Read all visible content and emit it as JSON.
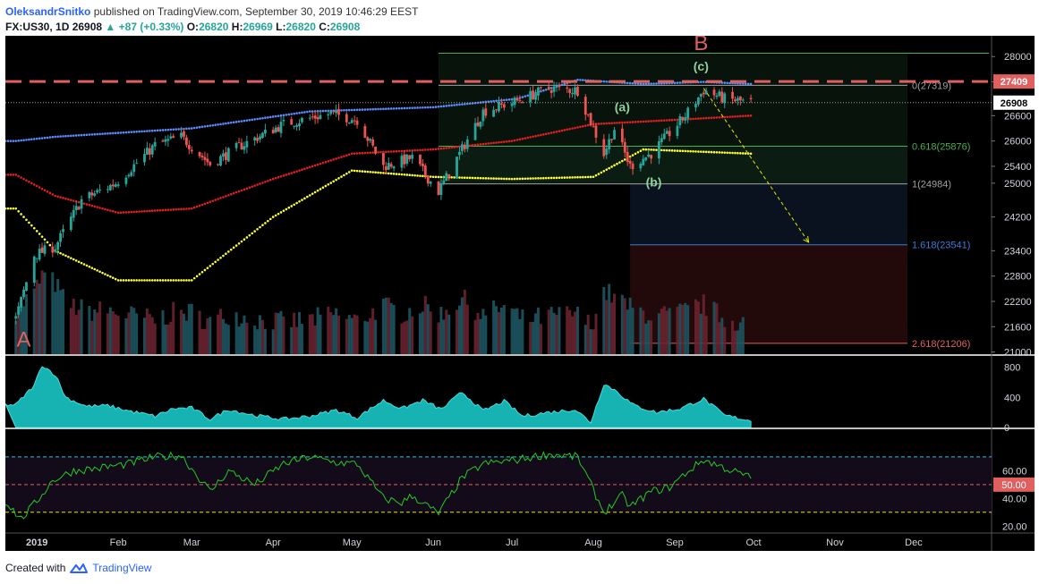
{
  "header": {
    "author": "OleksandrSnitko",
    "published": "published on TradingView.com, September 30, 2019 10:46:29 EEST",
    "symbol": "FX:US30, 1D",
    "last": "26908",
    "change": "+87 (+0.33%)",
    "open_label": "O:",
    "open": "26820",
    "high_label": "H:",
    "high": "26969",
    "low_label": "L:",
    "low": "26820",
    "close_label": "C:",
    "close": "26908"
  },
  "footer": {
    "created_with": "Created with",
    "brand": "TradingView"
  },
  "colors": {
    "background": "#000000",
    "bull": "#26a69a",
    "bear": "#ef5350",
    "upper_band": "#5b8cff",
    "mid_band": "#e02020",
    "lower_band": "#ffff33",
    "volume_area": "#17b3b3",
    "rsi": "#22cc22",
    "resistance": "#e06060"
  },
  "chart_data": [
    {
      "type": "candlestick",
      "x_ticks": [
        "2019",
        "Feb",
        "Mar",
        "Apr",
        "May",
        "Jun",
        "Jul",
        "Aug",
        "Sep",
        "Oct",
        "Nov",
        "Dec"
      ],
      "y_ticks": [
        28000,
        27400,
        26600,
        26000,
        25400,
        25000,
        24200,
        23400,
        22800,
        22200,
        21600,
        21000
      ],
      "ylim": [
        20950,
        28450
      ],
      "close_path": [
        {
          "x": "2018-12-24",
          "y": 21800
        },
        {
          "x": "2018-12-31",
          "y": 23300
        },
        {
          "x": "2019-01-08",
          "y": 23500
        },
        {
          "x": "2019-01-18",
          "y": 24600
        },
        {
          "x": "2019-01-31",
          "y": 25000
        },
        {
          "x": "2019-02-15",
          "y": 25900
        },
        {
          "x": "2019-02-25",
          "y": 26100
        },
        {
          "x": "2019-03-08",
          "y": 25450
        },
        {
          "x": "2019-03-20",
          "y": 25900
        },
        {
          "x": "2019-04-05",
          "y": 26400
        },
        {
          "x": "2019-04-23",
          "y": 26650
        },
        {
          "x": "2019-05-03",
          "y": 26500
        },
        {
          "x": "2019-05-13",
          "y": 25400
        },
        {
          "x": "2019-05-24",
          "y": 25600
        },
        {
          "x": "2019-06-03",
          "y": 24800
        },
        {
          "x": "2019-06-20",
          "y": 26700
        },
        {
          "x": "2019-07-03",
          "y": 26950
        },
        {
          "x": "2019-07-15",
          "y": 27250
        },
        {
          "x": "2019-07-26",
          "y": 27200
        },
        {
          "x": "2019-08-05",
          "y": 25700
        },
        {
          "x": "2019-08-09",
          "y": 26300
        },
        {
          "x": "2019-08-15",
          "y": 25400
        },
        {
          "x": "2019-08-23",
          "y": 25700
        },
        {
          "x": "2019-09-05",
          "y": 26600
        },
        {
          "x": "2019-09-12",
          "y": 27200
        },
        {
          "x": "2019-09-20",
          "y": 27000
        },
        {
          "x": "2019-09-30",
          "y": 26908
        }
      ],
      "bands": {
        "upper": [
          {
            "x": "2018-12-24",
            "y": 26000
          },
          {
            "x": "2019-01-08",
            "y": 26100
          },
          {
            "x": "2019-03-01",
            "y": 26300
          },
          {
            "x": "2019-04-15",
            "y": 26700
          },
          {
            "x": "2019-06-01",
            "y": 26800
          },
          {
            "x": "2019-07-03",
            "y": 27000
          },
          {
            "x": "2019-07-26",
            "y": 27450
          },
          {
            "x": "2019-08-20",
            "y": 27350
          },
          {
            "x": "2019-09-12",
            "y": 27400
          },
          {
            "x": "2019-09-30",
            "y": 27350
          }
        ],
        "middle": [
          {
            "x": "2018-12-24",
            "y": 25200
          },
          {
            "x": "2019-01-08",
            "y": 24700
          },
          {
            "x": "2019-02-01",
            "y": 24300
          },
          {
            "x": "2019-03-01",
            "y": 24400
          },
          {
            "x": "2019-04-01",
            "y": 25100
          },
          {
            "x": "2019-05-01",
            "y": 25700
          },
          {
            "x": "2019-06-01",
            "y": 25800
          },
          {
            "x": "2019-07-01",
            "y": 26000
          },
          {
            "x": "2019-08-01",
            "y": 26400
          },
          {
            "x": "2019-09-01",
            "y": 26500
          },
          {
            "x": "2019-09-30",
            "y": 26600
          }
        ],
        "lower": [
          {
            "x": "2018-12-24",
            "y": 24400
          },
          {
            "x": "2019-01-08",
            "y": 23400
          },
          {
            "x": "2019-02-01",
            "y": 22700
          },
          {
            "x": "2019-03-01",
            "y": 22700
          },
          {
            "x": "2019-04-01",
            "y": 24200
          },
          {
            "x": "2019-05-01",
            "y": 25300
          },
          {
            "x": "2019-06-01",
            "y": 25150
          },
          {
            "x": "2019-07-01",
            "y": 25100
          },
          {
            "x": "2019-08-01",
            "y": 25150
          },
          {
            "x": "2019-08-20",
            "y": 25800
          },
          {
            "x": "2019-09-30",
            "y": 25700
          }
        ]
      },
      "last_price": 26908,
      "resistance_level": 27409,
      "fibonacci": [
        {
          "ratio": "0",
          "value": 27319,
          "label": "0(27319)",
          "color": "#a0a0a0"
        },
        {
          "ratio": "0.618",
          "value": 25876,
          "label": "0.618(25876)",
          "color": "#4caf50"
        },
        {
          "ratio": "1",
          "value": 24984,
          "label": "1(24984)",
          "color": "#a0a0a0"
        },
        {
          "ratio": "1.618",
          "value": 23541,
          "label": "1.618(23541)",
          "color": "#3d7bd8"
        },
        {
          "ratio": "2.618",
          "value": 21206,
          "label": "2.618(21206)",
          "color": "#e06060"
        }
      ],
      "annotations": [
        {
          "text": "A",
          "color": "#e06060",
          "x": "2018-12-27",
          "y": 21130
        },
        {
          "text": "B",
          "color": "#e06060",
          "x": "2019-09-11",
          "y": 28150
        },
        {
          "text": "(a)",
          "color": "#8fd19e",
          "x": "2019-08-12",
          "y": 26700
        },
        {
          "text": "(b)",
          "color": "#8fd19e",
          "x": "2019-08-24",
          "y": 24920
        },
        {
          "text": "(c)",
          "color": "#8fd19e",
          "x": "2019-09-11",
          "y": 27670
        }
      ],
      "projection": {
        "from": {
          "x": "2019-09-12",
          "y": 27250
        },
        "to": {
          "x": "2019-10-22",
          "y": 23600
        }
      }
    },
    {
      "type": "area",
      "name": "volume",
      "y_ticks": [
        800,
        400,
        0
      ],
      "ylim": [
        0,
        950
      ],
      "values": [
        {
          "x": "2018-12-24",
          "y": 300
        },
        {
          "x": "2018-12-31",
          "y": 560
        },
        {
          "x": "2019-01-03",
          "y": 830
        },
        {
          "x": "2019-01-08",
          "y": 700
        },
        {
          "x": "2019-01-12",
          "y": 400
        },
        {
          "x": "2019-01-20",
          "y": 280
        },
        {
          "x": "2019-01-28",
          "y": 290
        },
        {
          "x": "2019-02-05",
          "y": 220
        },
        {
          "x": "2019-02-15",
          "y": 150
        },
        {
          "x": "2019-02-22",
          "y": 250
        },
        {
          "x": "2019-03-01",
          "y": 260
        },
        {
          "x": "2019-03-08",
          "y": 110
        },
        {
          "x": "2019-03-15",
          "y": 240
        },
        {
          "x": "2019-03-25",
          "y": 160
        },
        {
          "x": "2019-04-05",
          "y": 110
        },
        {
          "x": "2019-04-15",
          "y": 150
        },
        {
          "x": "2019-04-25",
          "y": 230
        },
        {
          "x": "2019-05-03",
          "y": 130
        },
        {
          "x": "2019-05-13",
          "y": 360
        },
        {
          "x": "2019-05-20",
          "y": 250
        },
        {
          "x": "2019-05-28",
          "y": 360
        },
        {
          "x": "2019-06-04",
          "y": 240
        },
        {
          "x": "2019-06-12",
          "y": 470
        },
        {
          "x": "2019-06-20",
          "y": 220
        },
        {
          "x": "2019-06-28",
          "y": 350
        },
        {
          "x": "2019-07-05",
          "y": 150
        },
        {
          "x": "2019-07-15",
          "y": 200
        },
        {
          "x": "2019-07-25",
          "y": 240
        },
        {
          "x": "2019-07-31",
          "y": 70
        },
        {
          "x": "2019-08-05",
          "y": 580
        },
        {
          "x": "2019-08-10",
          "y": 480
        },
        {
          "x": "2019-08-16",
          "y": 300
        },
        {
          "x": "2019-08-25",
          "y": 200
        },
        {
          "x": "2019-09-03",
          "y": 250
        },
        {
          "x": "2019-09-12",
          "y": 380
        },
        {
          "x": "2019-09-20",
          "y": 160
        },
        {
          "x": "2019-09-30",
          "y": 90
        }
      ]
    },
    {
      "type": "line",
      "name": "RSI",
      "y_ticks": [
        "60.00",
        "50.00",
        "40.00",
        "20.00"
      ],
      "ylim": [
        15,
        90
      ],
      "levels": {
        "upper": 70,
        "middle": 50,
        "lower": 30
      },
      "values": [
        {
          "x": "2018-12-20",
          "y": 38
        },
        {
          "x": "2018-12-26",
          "y": 25
        },
        {
          "x": "2019-01-01",
          "y": 38
        },
        {
          "x": "2019-01-07",
          "y": 53
        },
        {
          "x": "2019-01-15",
          "y": 60
        },
        {
          "x": "2019-01-25",
          "y": 62
        },
        {
          "x": "2019-02-05",
          "y": 65
        },
        {
          "x": "2019-02-15",
          "y": 70
        },
        {
          "x": "2019-02-25",
          "y": 71
        },
        {
          "x": "2019-03-08",
          "y": 45
        },
        {
          "x": "2019-03-15",
          "y": 60
        },
        {
          "x": "2019-03-25",
          "y": 50
        },
        {
          "x": "2019-04-05",
          "y": 65
        },
        {
          "x": "2019-04-15",
          "y": 70
        },
        {
          "x": "2019-04-25",
          "y": 66
        },
        {
          "x": "2019-05-03",
          "y": 65
        },
        {
          "x": "2019-05-13",
          "y": 40
        },
        {
          "x": "2019-05-20",
          "y": 37
        },
        {
          "x": "2019-05-24",
          "y": 42
        },
        {
          "x": "2019-06-03",
          "y": 29
        },
        {
          "x": "2019-06-12",
          "y": 55
        },
        {
          "x": "2019-06-20",
          "y": 65
        },
        {
          "x": "2019-07-03",
          "y": 68
        },
        {
          "x": "2019-07-15",
          "y": 72
        },
        {
          "x": "2019-07-26",
          "y": 70
        },
        {
          "x": "2019-08-05",
          "y": 30
        },
        {
          "x": "2019-08-12",
          "y": 42
        },
        {
          "x": "2019-08-15",
          "y": 34
        },
        {
          "x": "2019-08-23",
          "y": 45
        },
        {
          "x": "2019-08-30",
          "y": 48
        },
        {
          "x": "2019-09-05",
          "y": 58
        },
        {
          "x": "2019-09-12",
          "y": 68
        },
        {
          "x": "2019-09-20",
          "y": 62
        },
        {
          "x": "2019-09-30",
          "y": 55
        }
      ]
    }
  ]
}
